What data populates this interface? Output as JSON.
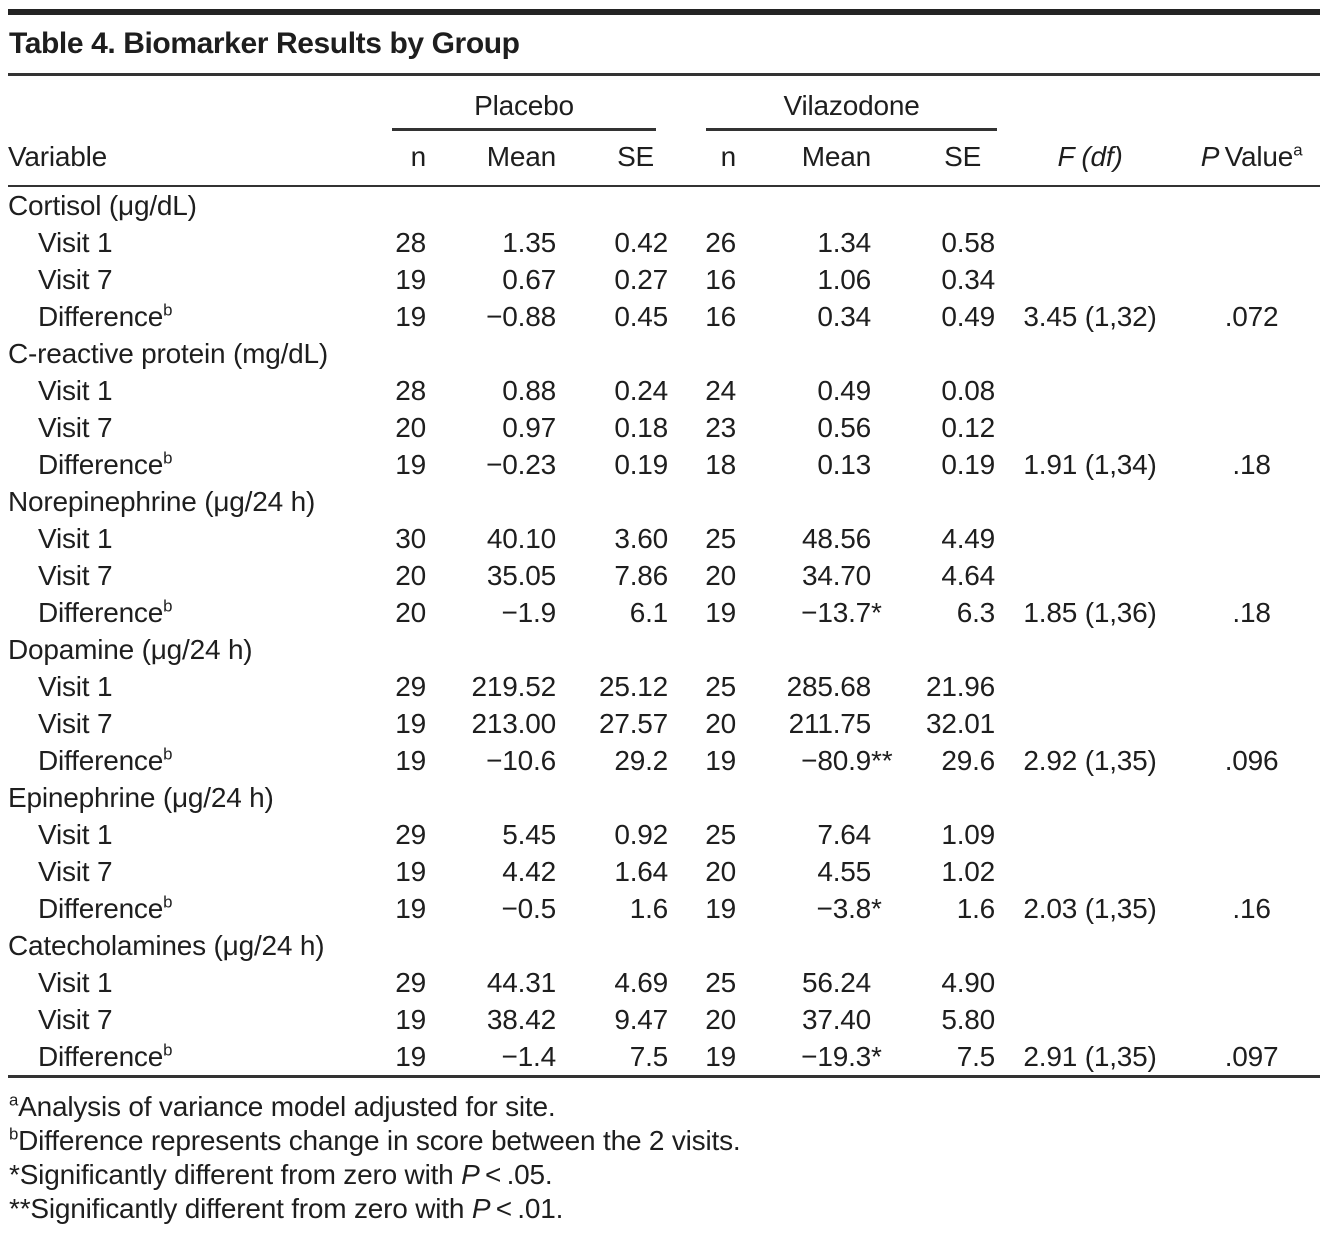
{
  "title": "Table 4. Biomarker Results by Group",
  "header": {
    "variable": "Variable",
    "groups": [
      {
        "label": "Placebo"
      },
      {
        "label": "Vilazodone"
      }
    ],
    "subcols": [
      "n",
      "Mean",
      "SE"
    ],
    "f_label": "F (df)",
    "p_italic": "P",
    "p_rest": " Value",
    "p_sup": "a"
  },
  "sections": [
    {
      "label": "Cortisol (μg/dL)",
      "rows": [
        {
          "label": "Visit 1",
          "sup": "",
          "p_n": "28",
          "p_mean": "1.35",
          "p_mark": "",
          "p_se": "0.42",
          "v_n": "26",
          "v_mean": "1.34",
          "v_mark": "",
          "v_se": "0.58",
          "f": "",
          "p": ""
        },
        {
          "label": "Visit 7",
          "sup": "",
          "p_n": "19",
          "p_mean": "0.67",
          "p_mark": "",
          "p_se": "0.27",
          "v_n": "16",
          "v_mean": "1.06",
          "v_mark": "",
          "v_se": "0.34",
          "f": "",
          "p": ""
        },
        {
          "label": "Difference",
          "sup": "b",
          "p_n": "19",
          "p_mean": "−0.88",
          "p_mark": "",
          "p_se": "0.45",
          "v_n": "16",
          "v_mean": "0.34",
          "v_mark": "",
          "v_se": "0.49",
          "f": "3.45 (1,32)",
          "p": ".072"
        }
      ]
    },
    {
      "label": "C-reactive protein (mg/dL)",
      "rows": [
        {
          "label": "Visit 1",
          "sup": "",
          "p_n": "28",
          "p_mean": "0.88",
          "p_mark": "",
          "p_se": "0.24",
          "v_n": "24",
          "v_mean": "0.49",
          "v_mark": "",
          "v_se": "0.08",
          "f": "",
          "p": ""
        },
        {
          "label": "Visit 7",
          "sup": "",
          "p_n": "20",
          "p_mean": "0.97",
          "p_mark": "",
          "p_se": "0.18",
          "v_n": "23",
          "v_mean": "0.56",
          "v_mark": "",
          "v_se": "0.12",
          "f": "",
          "p": ""
        },
        {
          "label": "Difference",
          "sup": "b",
          "p_n": "19",
          "p_mean": "−0.23",
          "p_mark": "",
          "p_se": "0.19",
          "v_n": "18",
          "v_mean": "0.13",
          "v_mark": "",
          "v_se": "0.19",
          "f": "1.91 (1,34)",
          "p": ".18"
        }
      ]
    },
    {
      "label": "Norepinephrine (μg/24 h)",
      "rows": [
        {
          "label": "Visit 1",
          "sup": "",
          "p_n": "30",
          "p_mean": "40.10",
          "p_mark": "",
          "p_se": "3.60",
          "v_n": "25",
          "v_mean": "48.56",
          "v_mark": "",
          "v_se": "4.49",
          "f": "",
          "p": ""
        },
        {
          "label": "Visit 7",
          "sup": "",
          "p_n": "20",
          "p_mean": "35.05",
          "p_mark": "",
          "p_se": "7.86",
          "v_n": "20",
          "v_mean": "34.70",
          "v_mark": "",
          "v_se": "4.64",
          "f": "",
          "p": ""
        },
        {
          "label": "Difference",
          "sup": "b",
          "p_n": "20",
          "p_mean": "−1.9",
          "p_mark": "",
          "p_se": "6.1",
          "v_n": "19",
          "v_mean": "−13.7",
          "v_mark": "*",
          "v_se": "6.3",
          "f": "1.85 (1,36)",
          "p": ".18"
        }
      ]
    },
    {
      "label": "Dopamine (μg/24 h)",
      "rows": [
        {
          "label": "Visit 1",
          "sup": "",
          "p_n": "29",
          "p_mean": "219.52",
          "p_mark": "",
          "p_se": "25.12",
          "v_n": "25",
          "v_mean": "285.68",
          "v_mark": "",
          "v_se": "21.96",
          "f": "",
          "p": ""
        },
        {
          "label": "Visit 7",
          "sup": "",
          "p_n": "19",
          "p_mean": "213.00",
          "p_mark": "",
          "p_se": "27.57",
          "v_n": "20",
          "v_mean": "211.75",
          "v_mark": "",
          "v_se": "32.01",
          "f": "",
          "p": ""
        },
        {
          "label": "Difference",
          "sup": "b",
          "p_n": "19",
          "p_mean": "−10.6",
          "p_mark": "",
          "p_se": "29.2",
          "v_n": "19",
          "v_mean": "−80.9",
          "v_mark": "**",
          "v_se": "29.6",
          "f": "2.92 (1,35)",
          "p": ".096"
        }
      ]
    },
    {
      "label": "Epinephrine (μg/24 h)",
      "rows": [
        {
          "label": "Visit 1",
          "sup": "",
          "p_n": "29",
          "p_mean": "5.45",
          "p_mark": "",
          "p_se": "0.92",
          "v_n": "25",
          "v_mean": "7.64",
          "v_mark": "",
          "v_se": "1.09",
          "f": "",
          "p": ""
        },
        {
          "label": "Visit 7",
          "sup": "",
          "p_n": "19",
          "p_mean": "4.42",
          "p_mark": "",
          "p_se": "1.64",
          "v_n": "20",
          "v_mean": "4.55",
          "v_mark": "",
          "v_se": "1.02",
          "f": "",
          "p": ""
        },
        {
          "label": "Difference",
          "sup": "b",
          "p_n": "19",
          "p_mean": "−0.5",
          "p_mark": "",
          "p_se": "1.6",
          "v_n": "19",
          "v_mean": "−3.8",
          "v_mark": "*",
          "v_se": "1.6",
          "f": "2.03 (1,35)",
          "p": ".16"
        }
      ]
    },
    {
      "label": "Catecholamines (μg/24 h)",
      "rows": [
        {
          "label": "Visit 1",
          "sup": "",
          "p_n": "29",
          "p_mean": "44.31",
          "p_mark": "",
          "p_se": "4.69",
          "v_n": "25",
          "v_mean": "56.24",
          "v_mark": "",
          "v_se": "4.90",
          "f": "",
          "p": ""
        },
        {
          "label": "Visit 7",
          "sup": "",
          "p_n": "19",
          "p_mean": "38.42",
          "p_mark": "",
          "p_se": "9.47",
          "v_n": "20",
          "v_mean": "37.40",
          "v_mark": "",
          "v_se": "5.80",
          "f": "",
          "p": ""
        },
        {
          "label": "Difference",
          "sup": "b",
          "p_n": "19",
          "p_mean": "−1.4",
          "p_mark": "",
          "p_se": "7.5",
          "v_n": "19",
          "v_mean": "−19.3",
          "v_mark": "*",
          "v_se": "7.5",
          "f": "2.91 (1,35)",
          "p": ".097"
        }
      ]
    }
  ],
  "footnotes": [
    {
      "sup": "a",
      "pre": "Analysis of variance model adjusted for site.",
      "p": "",
      "post": ""
    },
    {
      "sup": "b",
      "pre": "Difference represents change in score between the 2 visits.",
      "p": "",
      "post": ""
    },
    {
      "sup": "",
      "pre": "*Significantly different from zero with ",
      "p": "P",
      "post": " < .05."
    },
    {
      "sup": "",
      "pre": "**Significantly different from zero with ",
      "p": "P",
      "post": " < .01."
    }
  ]
}
